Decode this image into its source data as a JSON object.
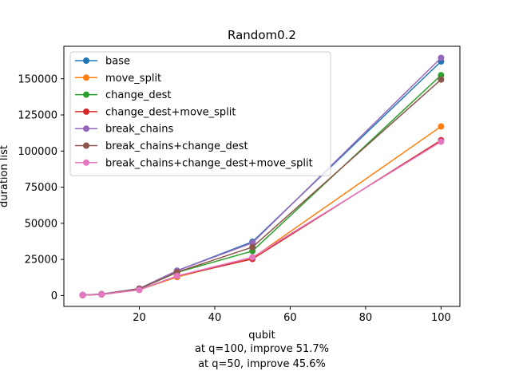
{
  "chart_data": {
    "type": "line",
    "title": "Random0.2",
    "xlabel": "qubit",
    "ylabel": "duration list",
    "xlim": [
      0,
      105
    ],
    "ylim": [
      -7500,
      172500
    ],
    "xticks": [
      20,
      40,
      60,
      80,
      100
    ],
    "yticks": [
      0,
      25000,
      50000,
      75000,
      100000,
      125000,
      150000
    ],
    "ytick_labels": [
      "0",
      "25000",
      "50000",
      "75000",
      "100000",
      "125000",
      "150000"
    ],
    "grid": false,
    "legend_position": "upper-left",
    "x": [
      5,
      10,
      20,
      30,
      50,
      100
    ],
    "series": [
      {
        "name": "base",
        "color": "#1f77b4",
        "values": [
          400,
          1000,
          4800,
          17200,
          37200,
          162000
        ]
      },
      {
        "name": "move_split",
        "color": "#ff7f0e",
        "values": [
          300,
          800,
          4000,
          12800,
          26000,
          117000
        ]
      },
      {
        "name": "change_dest",
        "color": "#2ca02c",
        "values": [
          350,
          950,
          4600,
          16000,
          30800,
          152500
        ]
      },
      {
        "name": "change_dest+move_split",
        "color": "#d62728",
        "values": [
          300,
          800,
          4000,
          13500,
          25300,
          107500
        ]
      },
      {
        "name": "break_chains",
        "color": "#9467bd",
        "values": [
          400,
          1000,
          4800,
          17200,
          36500,
          164500
        ]
      },
      {
        "name": "break_chains+change_dest",
        "color": "#8c564b",
        "values": [
          350,
          950,
          4700,
          16200,
          33500,
          149500
        ]
      },
      {
        "name": "break_chains+change_dest+move_split",
        "color": "#e377c2",
        "values": [
          300,
          800,
          4000,
          13600,
          26500,
          106500
        ]
      }
    ],
    "annotations": [
      "at q=100, improve 51.7%",
      "at q=50, improve 45.6%"
    ]
  }
}
